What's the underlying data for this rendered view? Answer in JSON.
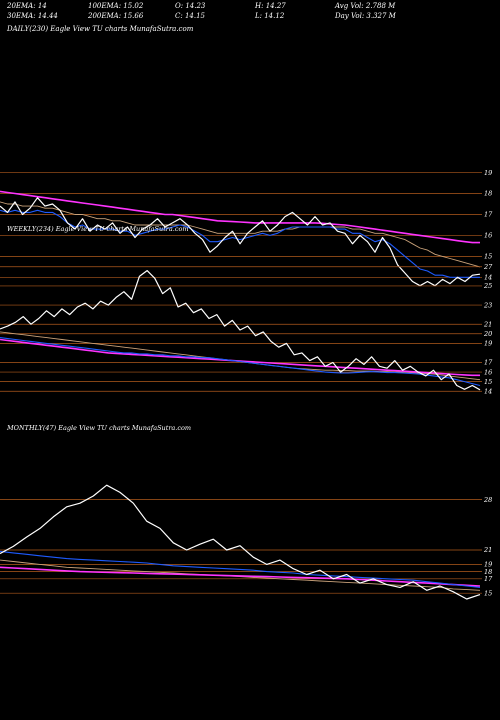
{
  "header": {
    "row1": [
      {
        "id": "ema20",
        "label": "20EMA: 14"
      },
      {
        "id": "ema100",
        "label": "100EMA: 15.02"
      },
      {
        "id": "open",
        "label": "O: 14.23"
      },
      {
        "id": "high",
        "label": "H: 14.27"
      },
      {
        "id": "avgvol",
        "label": "Avg Vol: 2.788 M"
      }
    ],
    "row2": [
      {
        "id": "ema30",
        "label": "30EMA: 14.44"
      },
      {
        "id": "ema200",
        "label": "200EMA: 15.66"
      },
      {
        "id": "close",
        "label": "C: 14.15"
      },
      {
        "id": "low",
        "label": "L: 14.12"
      },
      {
        "id": "dayvol",
        "label": "Day Vol: 3.327 M"
      }
    ],
    "daily_title": "DAILY(230) Eagle  View  TU charts MunafaSutra.com"
  },
  "colors": {
    "background": "#000000",
    "price": "#ffffff",
    "ema_fast": "#1e5bff",
    "ema_slow": "#ff33ff",
    "ema_mid": "#c9a27a",
    "grid": "#b05a1c"
  },
  "chart_data": [
    {
      "type": "line",
      "panel": "daily",
      "title": "DAILY(230) Eagle  View  TU charts MunafaSutra.com",
      "ylim": [
        13.3,
        19.6
      ],
      "y_ticks": [
        19,
        18,
        17,
        16,
        15,
        14
      ],
      "series": [
        {
          "role": "price",
          "color": "#ffffff",
          "values": [
            17.4,
            17.1,
            17.6,
            17.0,
            17.3,
            17.8,
            17.4,
            17.5,
            17.2,
            16.6,
            16.3,
            16.8,
            16.2,
            16.5,
            16.3,
            16.6,
            16.1,
            16.4,
            15.9,
            16.3,
            16.5,
            16.8,
            16.4,
            16.6,
            16.8,
            16.5,
            16.1,
            15.8,
            15.2,
            15.5,
            15.9,
            16.2,
            15.6,
            16.1,
            16.4,
            16.7,
            16.2,
            16.5,
            16.9,
            17.1,
            16.8,
            16.5,
            16.9,
            16.5,
            16.6,
            16.2,
            16.1,
            15.6,
            16.0,
            15.7,
            15.2,
            15.9,
            15.4,
            14.6,
            14.2,
            13.8,
            13.6,
            13.8,
            13.6,
            13.9,
            13.7,
            14.0,
            13.8,
            14.1,
            14.15
          ]
        },
        {
          "role": "ema-fast",
          "color": "#1e5bff",
          "values": [
            17.2,
            17.1,
            17.2,
            17.1,
            17.1,
            17.2,
            17.1,
            17.1,
            16.9,
            16.6,
            16.4,
            16.5,
            16.3,
            16.3,
            16.3,
            16.3,
            16.2,
            16.2,
            16.0,
            16.1,
            16.2,
            16.3,
            16.3,
            16.4,
            16.5,
            16.4,
            16.2,
            16.0,
            15.7,
            15.7,
            15.8,
            15.9,
            15.8,
            15.9,
            16.0,
            16.1,
            16.0,
            16.1,
            16.3,
            16.4,
            16.4,
            16.4,
            16.4,
            16.4,
            16.4,
            16.3,
            16.3,
            16.1,
            16.1,
            15.9,
            15.7,
            15.8,
            15.6,
            15.3,
            15.0,
            14.7,
            14.4,
            14.3,
            14.1,
            14.1,
            14.0,
            14.0,
            14.0,
            14.0,
            14.0
          ]
        },
        {
          "role": "ema-mid",
          "color": "#c9a27a",
          "values": [
            17.6,
            17.5,
            17.5,
            17.4,
            17.4,
            17.4,
            17.3,
            17.3,
            17.2,
            17.1,
            17.0,
            17.0,
            16.9,
            16.8,
            16.8,
            16.7,
            16.7,
            16.6,
            16.5,
            16.5,
            16.5,
            16.5,
            16.5,
            16.5,
            16.5,
            16.5,
            16.4,
            16.3,
            16.2,
            16.1,
            16.1,
            16.1,
            16.1,
            16.1,
            16.1,
            16.2,
            16.2,
            16.2,
            16.3,
            16.3,
            16.4,
            16.4,
            16.4,
            16.4,
            16.4,
            16.4,
            16.4,
            16.3,
            16.3,
            16.2,
            16.1,
            16.1,
            16.0,
            15.9,
            15.8,
            15.6,
            15.4,
            15.3,
            15.1,
            15.0,
            14.9,
            14.8,
            14.7,
            14.6,
            14.5
          ]
        },
        {
          "role": "ema-slow",
          "color": "#ff33ff",
          "values": [
            18.1,
            18.05,
            18.0,
            17.95,
            17.9,
            17.85,
            17.8,
            17.75,
            17.7,
            17.65,
            17.6,
            17.55,
            17.5,
            17.45,
            17.4,
            17.35,
            17.3,
            17.25,
            17.2,
            17.15,
            17.1,
            17.05,
            17.0,
            17.0,
            16.95,
            16.9,
            16.85,
            16.8,
            16.75,
            16.7,
            16.68,
            16.66,
            16.64,
            16.62,
            16.6,
            16.6,
            16.6,
            16.6,
            16.6,
            16.6,
            16.6,
            16.6,
            16.6,
            16.58,
            16.55,
            16.52,
            16.5,
            16.45,
            16.4,
            16.35,
            16.3,
            16.25,
            16.2,
            16.15,
            16.1,
            16.05,
            16.0,
            15.95,
            15.9,
            15.85,
            15.8,
            15.75,
            15.7,
            15.66,
            15.66
          ]
        }
      ]
    },
    {
      "type": "line",
      "panel": "weekly",
      "title": "WEEKLY(234) Eagle  View  TU charts MunafaSutra.com",
      "ylim": [
        13.5,
        27.5
      ],
      "y_ticks": [
        27,
        25,
        23,
        21,
        20,
        19,
        17,
        16,
        15,
        14
      ],
      "series": [
        {
          "role": "price",
          "color": "#ffffff",
          "values": [
            20.5,
            20.8,
            21.2,
            21.8,
            21.0,
            21.6,
            22.4,
            21.8,
            22.6,
            22.0,
            22.8,
            23.2,
            22.6,
            23.4,
            23.0,
            23.8,
            24.4,
            23.6,
            26.0,
            26.6,
            25.8,
            24.2,
            24.8,
            22.8,
            23.2,
            22.2,
            22.6,
            21.6,
            22.0,
            20.8,
            21.4,
            20.4,
            20.8,
            19.8,
            20.2,
            19.2,
            18.6,
            19.0,
            17.8,
            18.0,
            17.2,
            17.6,
            16.6,
            17.0,
            16.0,
            16.6,
            17.4,
            16.8,
            17.6,
            16.6,
            16.4,
            17.2,
            16.2,
            16.6,
            16.0,
            15.6,
            16.2,
            15.2,
            15.8,
            14.6,
            14.2,
            14.6,
            14.15
          ]
        },
        {
          "role": "ema-fast",
          "color": "#1e5bff",
          "values": [
            19.6,
            19.5,
            19.4,
            19.3,
            19.2,
            19.1,
            19.0,
            18.9,
            18.8,
            18.7,
            18.6,
            18.5,
            18.4,
            18.3,
            18.2,
            18.1,
            18.0,
            18.0,
            17.9,
            17.9,
            17.8,
            17.8,
            17.7,
            17.7,
            17.6,
            17.6,
            17.5,
            17.5,
            17.4,
            17.3,
            17.2,
            17.1,
            17.0,
            16.9,
            16.8,
            16.7,
            16.6,
            16.5,
            16.4,
            16.3,
            16.2,
            16.1,
            16.0,
            15.95,
            15.9,
            15.9,
            15.95,
            16.0,
            16.05,
            16.0,
            15.95,
            15.95,
            15.9,
            15.85,
            15.8,
            15.7,
            15.6,
            15.5,
            15.4,
            15.2,
            15.0,
            14.8,
            14.6
          ]
        },
        {
          "role": "ema-mid",
          "color": "#c9a27a",
          "values": [
            20.2,
            20.1,
            20.0,
            19.9,
            19.8,
            19.7,
            19.6,
            19.5,
            19.4,
            19.3,
            19.2,
            19.1,
            19.0,
            18.9,
            18.8,
            18.7,
            18.6,
            18.5,
            18.4,
            18.3,
            18.2,
            18.1,
            18.0,
            17.9,
            17.8,
            17.7,
            17.6,
            17.5,
            17.4,
            17.3,
            17.2,
            17.1,
            17.0,
            16.9,
            16.8,
            16.7,
            16.6,
            16.5,
            16.4,
            16.35,
            16.3,
            16.25,
            16.2,
            16.2,
            16.15,
            16.15,
            16.1,
            16.1,
            16.1,
            16.05,
            16.05,
            16.0,
            16.0,
            15.95,
            15.9,
            15.85,
            15.8,
            15.7,
            15.6,
            15.5,
            15.4,
            15.3,
            15.2
          ]
        },
        {
          "role": "ema-slow",
          "color": "#ff33ff",
          "values": [
            19.4,
            19.3,
            19.2,
            19.1,
            19.0,
            18.9,
            18.8,
            18.7,
            18.6,
            18.5,
            18.4,
            18.3,
            18.2,
            18.1,
            18.0,
            17.95,
            17.9,
            17.85,
            17.8,
            17.75,
            17.7,
            17.65,
            17.6,
            17.55,
            17.5,
            17.45,
            17.4,
            17.35,
            17.3,
            17.25,
            17.2,
            17.15,
            17.1,
            17.05,
            17.0,
            16.95,
            16.9,
            16.85,
            16.8,
            16.75,
            16.7,
            16.65,
            16.6,
            16.55,
            16.5,
            16.45,
            16.4,
            16.35,
            16.3,
            16.25,
            16.2,
            16.15,
            16.1,
            16.05,
            16.0,
            15.95,
            15.9,
            15.85,
            15.8,
            15.75,
            15.7,
            15.66,
            15.66
          ]
        }
      ]
    },
    {
      "type": "line",
      "panel": "monthly",
      "title": "MONTHLY(47) Eagle  View  TU charts MunafaSutra.com",
      "ylim": [
        13.5,
        31
      ],
      "y_ticks": [
        28,
        21,
        19,
        18,
        17,
        15
      ],
      "series": [
        {
          "role": "price",
          "color": "#ffffff",
          "values": [
            20.5,
            21.5,
            22.8,
            24.0,
            25.6,
            27.0,
            27.5,
            28.5,
            30.0,
            29.0,
            27.5,
            25.0,
            24.0,
            22.0,
            21.0,
            21.8,
            22.5,
            21.0,
            21.6,
            20.0,
            19.0,
            19.6,
            18.4,
            17.6,
            18.2,
            17.0,
            17.6,
            16.4,
            17.0,
            16.2,
            15.8,
            16.6,
            15.4,
            16.0,
            15.2,
            14.2,
            14.8
          ]
        },
        {
          "role": "ema-fast",
          "color": "#1e5bff",
          "values": [
            20.8,
            20.6,
            20.4,
            20.2,
            20.0,
            19.8,
            19.7,
            19.6,
            19.5,
            19.4,
            19.3,
            19.2,
            19.0,
            18.8,
            18.7,
            18.6,
            18.5,
            18.4,
            18.3,
            18.2,
            18.0,
            17.9,
            17.8,
            17.6,
            17.5,
            17.4,
            17.3,
            17.2,
            17.1,
            17.0,
            16.9,
            16.8,
            16.6,
            16.4,
            16.2,
            16.0,
            15.8
          ]
        },
        {
          "role": "ema-mid",
          "color": "#c9a27a",
          "values": [
            19.6,
            19.4,
            19.2,
            19.0,
            18.8,
            18.6,
            18.5,
            18.4,
            18.3,
            18.2,
            18.1,
            18.0,
            17.9,
            17.8,
            17.7,
            17.6,
            17.5,
            17.4,
            17.3,
            17.2,
            17.1,
            17.0,
            16.9,
            16.8,
            16.7,
            16.6,
            16.5,
            16.4,
            16.3,
            16.2,
            16.1,
            16.0,
            15.9,
            15.8,
            15.6,
            15.5,
            15.4
          ]
        },
        {
          "role": "ema-slow",
          "color": "#ff33ff",
          "values": [
            18.6,
            18.5,
            18.4,
            18.3,
            18.2,
            18.1,
            18.0,
            17.95,
            17.9,
            17.85,
            17.8,
            17.75,
            17.7,
            17.65,
            17.6,
            17.55,
            17.5,
            17.45,
            17.4,
            17.35,
            17.3,
            17.25,
            17.2,
            17.15,
            17.1,
            17.05,
            17.0,
            16.9,
            16.8,
            16.7,
            16.6,
            16.5,
            16.4,
            16.3,
            16.2,
            16.1,
            16.0
          ]
        }
      ]
    }
  ]
}
